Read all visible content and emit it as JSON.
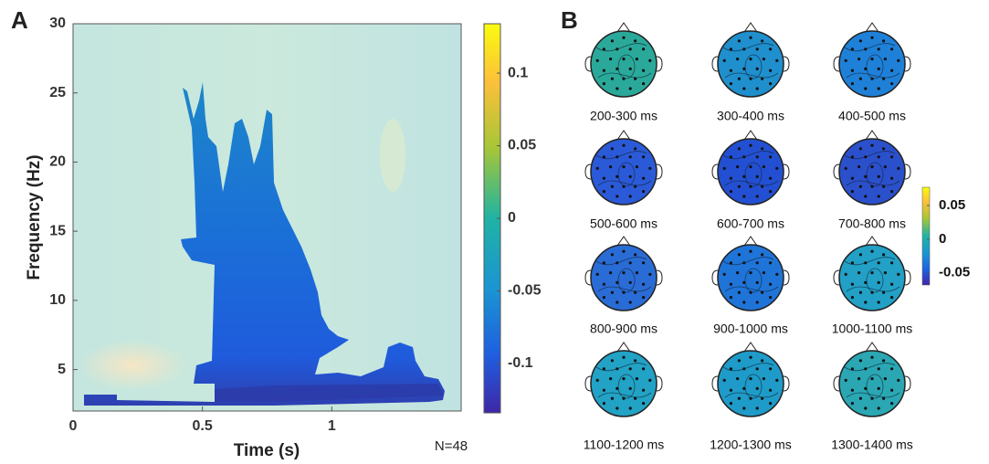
{
  "chart_data": [
    {
      "type": "heatmap",
      "panel_label": "A",
      "xlabel": "Time (s)",
      "ylabel": "Frequency (Hz)",
      "xlim": [
        0,
        1.5
      ],
      "ylim": [
        2,
        30
      ],
      "xticks": [
        0,
        0.5,
        1
      ],
      "yticks": [
        5,
        10,
        15,
        20,
        25,
        30
      ],
      "clim": [
        -0.134,
        0.134
      ],
      "cticks": [
        0.1,
        0.05,
        0,
        -0.05,
        -0.1
      ],
      "annotation": "N=48"
    },
    {
      "type": "topomap",
      "panel_label": "B",
      "maps": [
        {
          "label": "200-300 ms",
          "color": "#2aa99a"
        },
        {
          "label": "300-400 ms",
          "color": "#1f8fcd"
        },
        {
          "label": "400-500 ms",
          "color": "#1f80d8"
        },
        {
          "label": "500-600 ms",
          "color": "#2b5ad8"
        },
        {
          "label": "600-700 ms",
          "color": "#2350d2"
        },
        {
          "label": "700-800 ms",
          "color": "#2b50cc"
        },
        {
          "label": "800-900 ms",
          "color": "#2a6cd6"
        },
        {
          "label": "900-1000 ms",
          "color": "#1f74d8"
        },
        {
          "label": "1000-1100 ms",
          "color": "#22a0c6"
        },
        {
          "label": "1100-1200 ms",
          "color": "#22a2c4"
        },
        {
          "label": "1200-1300 ms",
          "color": "#1e9bc8"
        },
        {
          "label": "1300-1400 ms",
          "color": "#2aa7b3"
        }
      ],
      "clim": [
        -0.068,
        0.077
      ],
      "cticks": [
        0.05,
        0,
        -0.05
      ]
    }
  ]
}
